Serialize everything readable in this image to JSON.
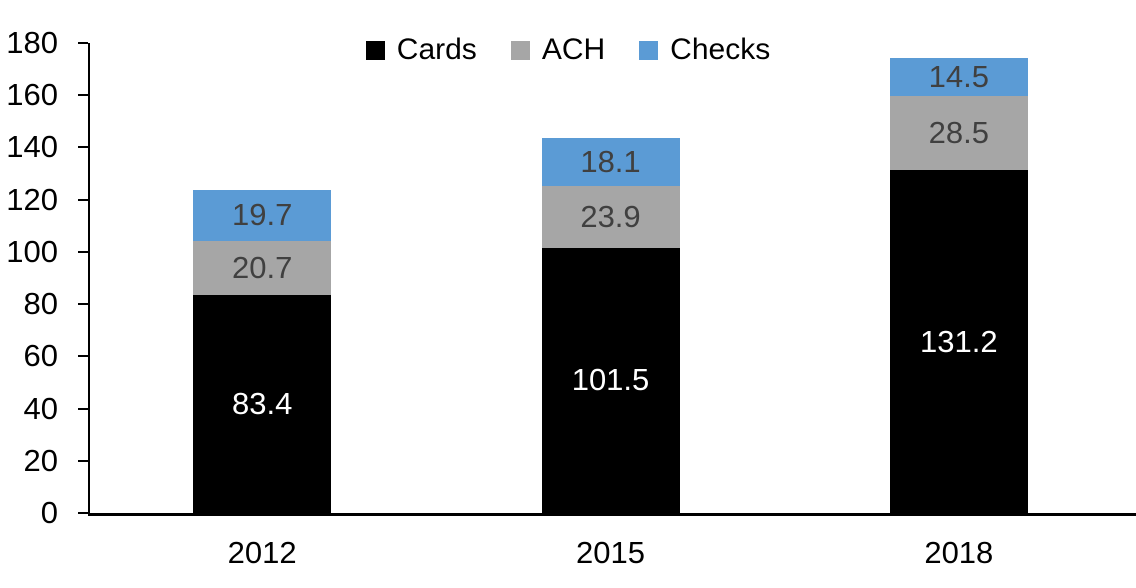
{
  "chart_data": {
    "type": "bar",
    "stacked": true,
    "title": "",
    "categories": [
      "2012",
      "2015",
      "2018"
    ],
    "series": [
      {
        "name": "Cards",
        "color": "#000000",
        "label_color": "#ffffff",
        "values": [
          83.4,
          101.5,
          131.2
        ]
      },
      {
        "name": "ACH",
        "color": "#a6a6a6",
        "label_color": "#404040",
        "values": [
          20.7,
          23.9,
          28.5
        ]
      },
      {
        "name": "Checks",
        "color": "#5b9bd5",
        "label_color": "#404040",
        "values": [
          19.7,
          18.1,
          14.5
        ]
      }
    ],
    "legend": [
      "Cards",
      "ACH",
      "Checks"
    ],
    "legend_position": "top-center",
    "xlabel": "",
    "ylabel": "",
    "ylim": [
      0,
      180
    ],
    "ytick_step": 20,
    "value_label_decimals": 1,
    "grid": false,
    "axis_color": "#000000",
    "background_color": "#ffffff"
  }
}
